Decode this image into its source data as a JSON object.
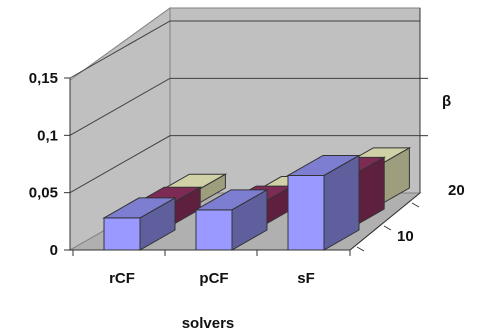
{
  "chart_data": {
    "type": "bar",
    "variant": "3d-clustered-depth",
    "categories": [
      "rCF",
      "pCF",
      "sF"
    ],
    "depth_categories": [
      "10",
      "20"
    ],
    "series": [
      {
        "name": "",
        "stack_segment": "bottom",
        "color": "#9999ff",
        "values": [
          0.028,
          0.035,
          0.065
        ]
      },
      {
        "name": "",
        "stack_segment": "middle",
        "color": "#993366",
        "values": [
          0.019,
          0.02,
          0.045
        ]
      },
      {
        "name": "",
        "stack_segment": "top",
        "color": "#ffffcc",
        "values": [
          0.012,
          0.01,
          0.035
        ]
      }
    ],
    "title": "",
    "xlabel": "solvers",
    "ylabel": "",
    "zlabel": "β",
    "ylim": [
      0,
      0.15
    ],
    "yticks": [
      "0",
      "0,05",
      "0,1",
      "0,15"
    ],
    "grid": true,
    "legend": "none"
  }
}
